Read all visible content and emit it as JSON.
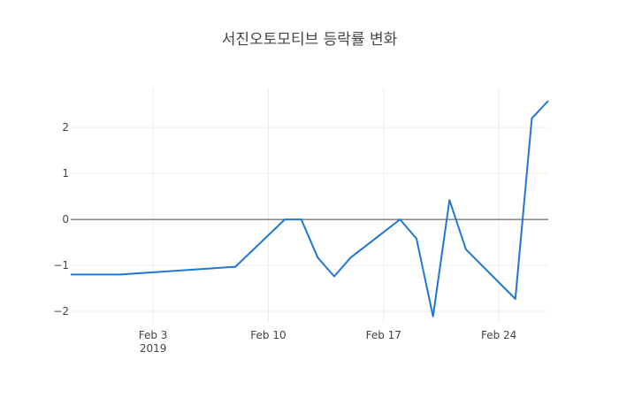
{
  "chart_data": {
    "type": "line",
    "title": "서진오토모티브 등락률 변화",
    "xlabel": "",
    "ylabel": "",
    "x_ticks": [
      {
        "date": "2019-02-03",
        "label": "Feb 3",
        "sublabel": "2019"
      },
      {
        "date": "2019-02-10",
        "label": "Feb 10",
        "sublabel": ""
      },
      {
        "date": "2019-02-17",
        "label": "Feb 17",
        "sublabel": ""
      },
      {
        "date": "2019-02-24",
        "label": "Feb 24",
        "sublabel": ""
      }
    ],
    "y_ticks": [
      {
        "value": 2,
        "label": "2"
      },
      {
        "value": 1,
        "label": "1"
      },
      {
        "value": 0,
        "label": "0"
      },
      {
        "value": -1,
        "label": "−1"
      },
      {
        "value": -2,
        "label": "−2"
      }
    ],
    "xlim": [
      "2019-01-29",
      "2019-02-27"
    ],
    "ylim": [
      -2.25,
      2.85
    ],
    "grid": true,
    "zero_line": true,
    "line_color": "#1f77d4",
    "series": [
      {
        "x": [
          "2019-01-29",
          "2019-02-01",
          "2019-02-08",
          "2019-02-11",
          "2019-02-12",
          "2019-02-13",
          "2019-02-14",
          "2019-02-15",
          "2019-02-18",
          "2019-02-19",
          "2019-02-20",
          "2019-02-21",
          "2019-02-22",
          "2019-02-25",
          "2019-02-26",
          "2019-02-27"
        ],
        "y": [
          -1.2,
          -1.2,
          -1.03,
          0.0,
          0.0,
          -0.83,
          -1.24,
          -0.83,
          0.0,
          -0.42,
          -2.11,
          0.42,
          -0.65,
          -1.73,
          2.2,
          2.58
        ]
      }
    ]
  }
}
